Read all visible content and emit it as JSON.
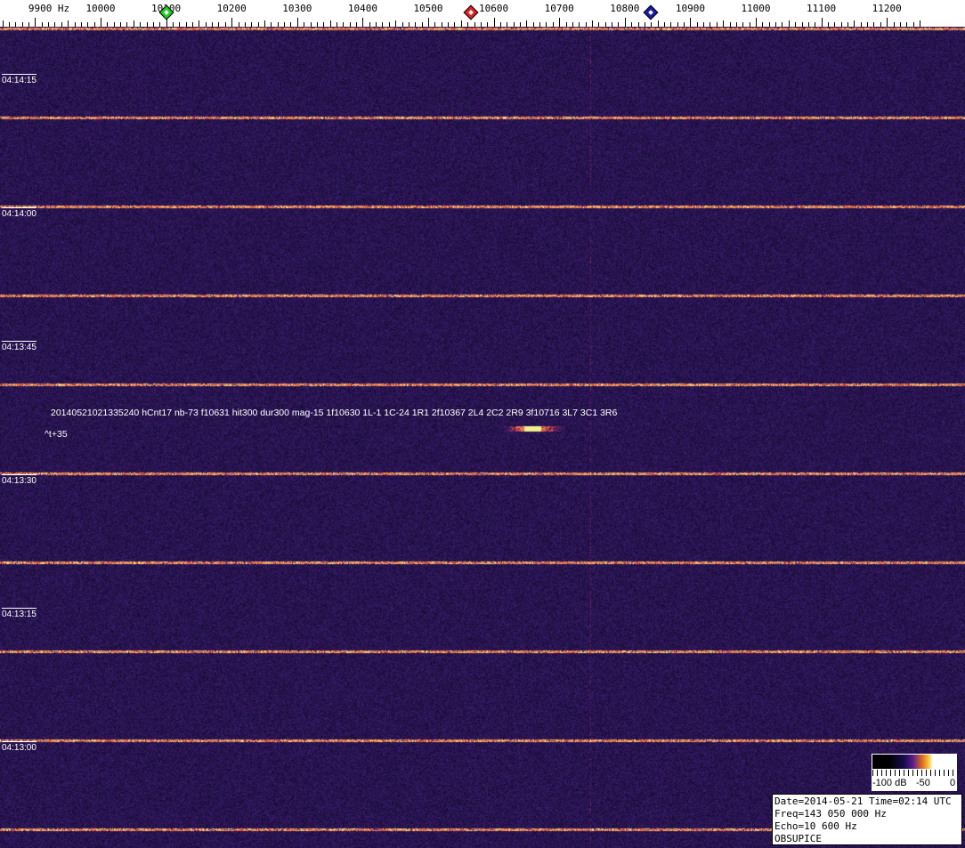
{
  "frequency_axis": {
    "unit_label": "9900 Hz",
    "labels": [
      "10000",
      "10100",
      "10200",
      "10300",
      "10400",
      "10500",
      "10600",
      "10700",
      "10800",
      "10900",
      "11000",
      "11100",
      "11200"
    ],
    "label_values": [
      10000,
      10100,
      10200,
      10300,
      10400,
      10500,
      10600,
      10700,
      10800,
      10900,
      11000,
      11100,
      11200
    ]
  },
  "markers": [
    {
      "name": "green-marker",
      "freq_hz": 10100,
      "color": "#22cc22"
    },
    {
      "name": "red-marker",
      "freq_hz": 10565,
      "color": "#dd2222"
    },
    {
      "name": "blue-marker",
      "freq_hz": 10840,
      "color": "#1a1aaa"
    }
  ],
  "time_labels": [
    "04:14:15",
    "04:14:00",
    "04:13:45",
    "04:13:30",
    "04:13:15",
    "04:13:00"
  ],
  "decode_text": "20140521021335240 hCnt17 nb-73 f10631 hit300 dur300 mag-15 1f10630 1L-1 1C-24 1R1 2f10367 2L4 2C2 2R9 3f10716 3L7 3C1 3R6",
  "time_offset": "^t+35",
  "colorbar": {
    "min_label": "-100 dB",
    "mid_label": "-50",
    "max_label": "0"
  },
  "info": {
    "date_line": "Date=2014-05-21 Time=02:14 UTC",
    "freq_line": "Freq=143 050 000 Hz",
    "echo_line": "Echo=10 600 Hz",
    "station": "OBSUPICE"
  },
  "colors": {
    "background": "#1a1450",
    "signal": "#ffb030"
  }
}
